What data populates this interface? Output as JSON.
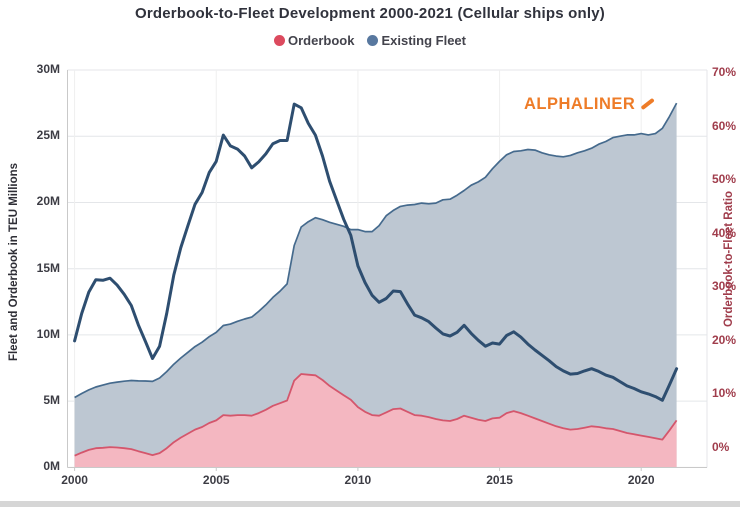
{
  "title": "Orderbook-to-Fleet Development 2000-2021 (Cellular ships only)",
  "legend": [
    {
      "label": "Orderbook",
      "color": "#dc4a5e"
    },
    {
      "label": "Existing Fleet",
      "color": "#58789f"
    }
  ],
  "watermark": {
    "text": "ALPHALINER",
    "color": "#ee7c28"
  },
  "colors": {
    "orderbook_fill": "#f4b7c1",
    "orderbook_stroke": "#d4566c",
    "fleet_fill": "#bdc7d2",
    "fleet_stroke": "#456a8d",
    "ratio_line": "#2e4e70",
    "grid": "#e4e6e9",
    "axis": "#c9c9c9",
    "right_axis_text": "#a03d4c"
  },
  "chart_data": {
    "type": "area",
    "stacked": true,
    "title": "Orderbook-to-Fleet Development 2000-2021 (Cellular ships only)",
    "xlabel": "",
    "x_ticks": [
      2000,
      2005,
      2010,
      2015,
      2020
    ],
    "x_tick_labels": [
      "2000",
      "2005",
      "2010",
      "2015",
      "2020"
    ],
    "x_range": [
      1999.77,
      2022.3
    ],
    "y_left": {
      "label": "Fleet and Orderbook in TEU Millions",
      "tick_labels": [
        "0M",
        "5M",
        "10M",
        "15M",
        "20M",
        "25M",
        "30M"
      ],
      "tick_values": [
        0,
        5,
        10,
        15,
        20,
        25,
        30
      ],
      "range": [
        0,
        30
      ]
    },
    "y_right": {
      "label": "Orderbook-to-Fleet Ratio",
      "tick_labels": [
        "0%",
        "10%",
        "20%",
        "30%",
        "40%",
        "50%",
        "60%",
        "70%"
      ],
      "tick_values": [
        0,
        10,
        20,
        30,
        40,
        50,
        60,
        70
      ],
      "range": [
        0,
        70
      ]
    },
    "grid": true,
    "legend_position": "top-center",
    "x": [
      2000,
      2000.25,
      2000.5,
      2000.75,
      2001,
      2001.25,
      2001.5,
      2001.75,
      2002,
      2002.25,
      2002.5,
      2002.75,
      2003,
      2003.25,
      2003.5,
      2003.75,
      2004,
      2004.25,
      2004.5,
      2004.75,
      2005,
      2005.25,
      2005.5,
      2005.75,
      2006,
      2006.25,
      2006.5,
      2006.75,
      2007,
      2007.25,
      2007.5,
      2007.75,
      2008,
      2008.25,
      2008.5,
      2008.75,
      2009,
      2009.25,
      2009.5,
      2009.75,
      2010,
      2010.25,
      2010.5,
      2010.75,
      2011,
      2011.25,
      2011.5,
      2011.75,
      2012,
      2012.25,
      2012.5,
      2012.75,
      2013,
      2013.25,
      2013.5,
      2013.75,
      2014,
      2014.25,
      2014.5,
      2014.75,
      2015,
      2015.25,
      2015.5,
      2015.75,
      2016,
      2016.25,
      2016.5,
      2016.75,
      2017,
      2017.25,
      2017.5,
      2017.75,
      2018,
      2018.25,
      2018.5,
      2018.75,
      2019,
      2019.25,
      2019.5,
      2019.75,
      2020,
      2020.25,
      2020.5,
      2020.75,
      2021,
      2021.25
    ],
    "series": [
      {
        "name": "Orderbook",
        "kind": "area",
        "axis": "left",
        "unit": "TEU millions",
        "values": [
          0.88,
          1.12,
          1.32,
          1.45,
          1.48,
          1.53,
          1.5,
          1.45,
          1.38,
          1.22,
          1.08,
          0.93,
          1.08,
          1.45,
          1.9,
          2.25,
          2.55,
          2.85,
          3.05,
          3.35,
          3.55,
          3.95,
          3.9,
          3.95,
          3.95,
          3.9,
          4.1,
          4.35,
          4.65,
          4.85,
          5.05,
          6.55,
          7.05,
          7.0,
          6.95,
          6.6,
          6.15,
          5.8,
          5.45,
          5.1,
          4.55,
          4.2,
          3.95,
          3.9,
          4.15,
          4.4,
          4.45,
          4.2,
          3.95,
          3.9,
          3.8,
          3.65,
          3.55,
          3.5,
          3.65,
          3.9,
          3.75,
          3.6,
          3.5,
          3.7,
          3.75,
          4.1,
          4.25,
          4.1,
          3.9,
          3.7,
          3.5,
          3.3,
          3.1,
          2.95,
          2.85,
          2.9,
          3.0,
          3.1,
          3.05,
          2.95,
          2.9,
          2.75,
          2.6,
          2.5,
          2.4,
          2.3,
          2.2,
          2.1,
          2.8,
          3.55
        ]
      },
      {
        "name": "Existing Fleet",
        "kind": "area",
        "axis": "left",
        "unit": "TEU millions",
        "values": [
          4.4,
          4.46,
          4.53,
          4.62,
          4.73,
          4.83,
          4.94,
          5.06,
          5.18,
          5.31,
          5.44,
          5.56,
          5.67,
          5.78,
          5.89,
          6.01,
          6.14,
          6.27,
          6.4,
          6.52,
          6.64,
          6.76,
          6.92,
          7.08,
          7.25,
          7.45,
          7.68,
          7.92,
          8.18,
          8.45,
          8.8,
          10.2,
          11.1,
          11.55,
          11.9,
          12.1,
          12.35,
          12.55,
          12.75,
          12.85,
          13.4,
          13.6,
          13.85,
          14.35,
          14.85,
          15.0,
          15.25,
          15.6,
          15.9,
          16.05,
          16.1,
          16.3,
          16.65,
          16.75,
          16.9,
          17.0,
          17.55,
          17.95,
          18.4,
          18.85,
          19.35,
          19.5,
          19.6,
          19.8,
          20.1,
          20.25,
          20.25,
          20.3,
          20.4,
          20.5,
          20.7,
          20.85,
          20.9,
          21.0,
          21.35,
          21.65,
          22.0,
          22.25,
          22.5,
          22.6,
          22.8,
          22.8,
          23.0,
          23.5,
          23.7,
          23.95
        ]
      },
      {
        "name": "Orderbook-to-Fleet Ratio",
        "kind": "line",
        "axis": "right",
        "unit": "%",
        "values": [
          20.0,
          25.1,
          29.1,
          31.4,
          31.3,
          31.7,
          30.4,
          28.7,
          26.6,
          23.0,
          19.9,
          16.7,
          19.0,
          25.1,
          32.3,
          37.4,
          41.5,
          45.5,
          47.7,
          51.4,
          53.5,
          58.4,
          56.4,
          55.8,
          54.5,
          52.3,
          53.4,
          54.9,
          56.8,
          57.4,
          57.4,
          64.2,
          63.5,
          60.6,
          58.4,
          54.5,
          49.8,
          46.2,
          42.7,
          39.7,
          34.0,
          30.9,
          28.5,
          27.2,
          27.9,
          29.3,
          29.2,
          26.9,
          24.8,
          24.3,
          23.6,
          22.4,
          21.3,
          20.9,
          21.6,
          22.9,
          21.4,
          20.1,
          19.0,
          19.6,
          19.4,
          21.0,
          21.7,
          20.7,
          19.4,
          18.3,
          17.3,
          16.3,
          15.2,
          14.4,
          13.8,
          13.9,
          14.4,
          14.8,
          14.3,
          13.6,
          13.2,
          12.4,
          11.6,
          11.1,
          10.5,
          10.1,
          9.6,
          8.9,
          11.8,
          14.8
        ]
      }
    ]
  }
}
